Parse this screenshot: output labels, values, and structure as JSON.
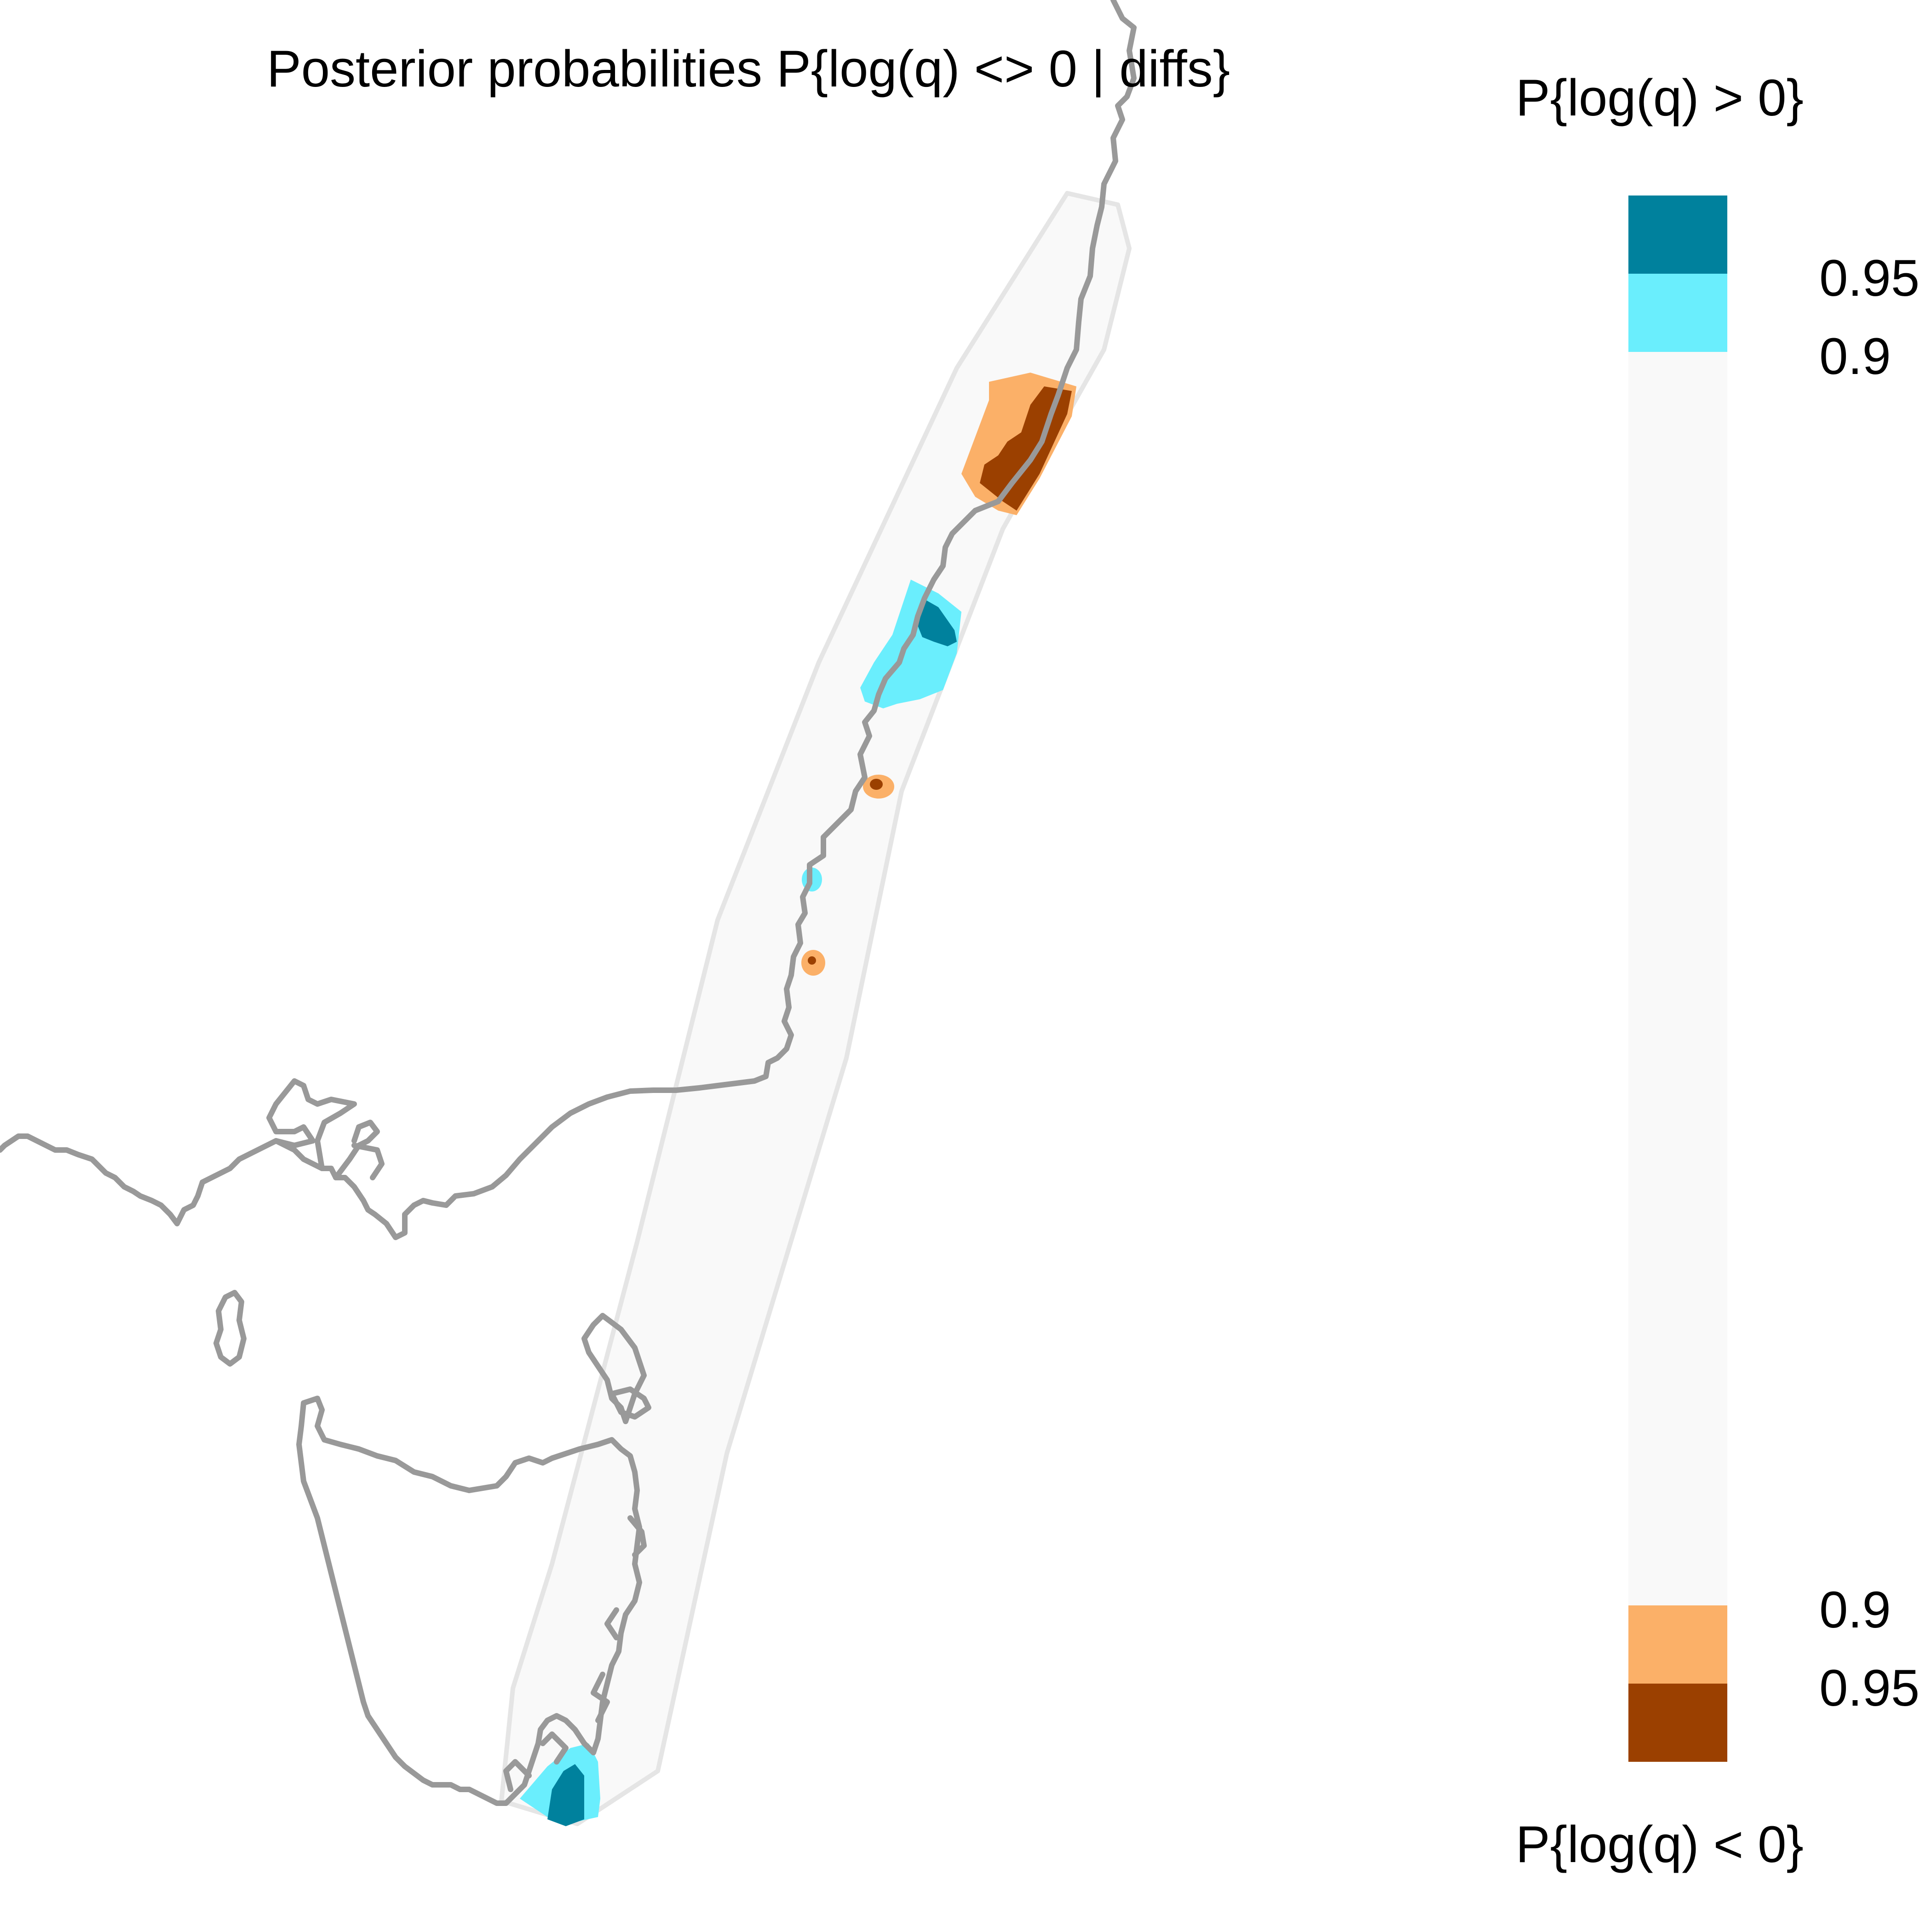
{
  "title": "Posterior probabilities P{log(q) <> 0 | diffs}",
  "legend": {
    "top_title": "P{log(q) > 0}",
    "bottom_title": "P{log(q) < 0}",
    "entries": [
      {
        "label": "0.95",
        "color": "#00819d",
        "meaning": "positive"
      },
      {
        "label": "0.9",
        "color": "#6aeefd",
        "meaning": "positive"
      },
      {
        "label": "",
        "color": "#f9f9f9",
        "meaning": "neutral"
      },
      {
        "label": "0.9",
        "color": "#fbb068",
        "meaning": "negative"
      },
      {
        "label": "0.95",
        "color": "#9b4000",
        "meaning": "negative"
      }
    ]
  },
  "map": {
    "coastline_color": "#999999",
    "study_region_color": "#f9f9f9",
    "study_region_border": "#e5e5e5"
  }
}
